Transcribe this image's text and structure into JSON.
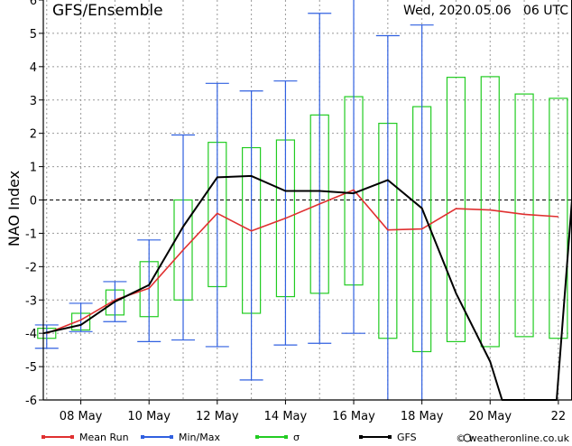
{
  "chart_data": {
    "type": "line",
    "title": "GFS/Ensemble",
    "run_label": "Wed, 2020.05.06   06 UTC",
    "ylabel": "NAO Index",
    "xlabel": "",
    "ylim": [
      -6,
      6
    ],
    "yticks": [
      -6,
      -5,
      -4,
      -3,
      -2,
      -1,
      0,
      1,
      2,
      3,
      4,
      5,
      6
    ],
    "grid": true,
    "x_range_days": [
      6.9,
      22.4
    ],
    "x_tick_labels": [
      {
        "day": 8,
        "label": "08 May"
      },
      {
        "day": 10,
        "label": "10 May"
      },
      {
        "day": 12,
        "label": "12 May"
      },
      {
        "day": 14,
        "label": "14 May"
      },
      {
        "day": 16,
        "label": "16 May"
      },
      {
        "day": 18,
        "label": "18 May"
      },
      {
        "day": 20,
        "label": "20 May"
      },
      {
        "day": 22,
        "label": "22"
      }
    ],
    "series": [
      {
        "name": "Mean Run",
        "color": "#e03030",
        "x": [
          7,
          8,
          9,
          10,
          11,
          12,
          13,
          14,
          15,
          16,
          17,
          18,
          19,
          20,
          21,
          22
        ],
        "y": [
          -4.0,
          -3.6,
          -3.0,
          -2.65,
          -1.5,
          -0.4,
          -0.93,
          -0.55,
          -0.12,
          0.3,
          -0.9,
          -0.87,
          -0.26,
          -0.3,
          -0.43,
          -0.5
        ]
      },
      {
        "name": "GFS",
        "color": "#000000",
        "x": [
          6.9,
          8,
          9,
          10,
          11,
          12,
          13,
          14,
          15,
          16,
          17,
          18,
          19,
          20,
          20.35,
          21.2,
          21.95,
          22.4
        ],
        "y": [
          -4.0,
          -3.75,
          -3.05,
          -2.55,
          -0.8,
          0.68,
          0.72,
          0.27,
          0.27,
          0.2,
          0.6,
          -0.25,
          -2.8,
          -4.85,
          -6.0,
          -6.0,
          -6.0,
          0.0
        ]
      },
      {
        "name": "Min/Max",
        "color": "#3060e0",
        "kind": "whiskers",
        "x": [
          7,
          8,
          9,
          10,
          11,
          12,
          13,
          14,
          15,
          16,
          17,
          18
        ],
        "low": [
          -4.45,
          -3.95,
          -3.65,
          -4.25,
          -4.2,
          -4.4,
          -5.4,
          -4.35,
          -4.3,
          -4.0,
          -6.0,
          -6.0
        ],
        "high": [
          -3.75,
          -3.1,
          -2.45,
          -1.2,
          1.95,
          3.5,
          3.27,
          3.57,
          5.6,
          6.0,
          4.93,
          5.25
        ]
      },
      {
        "name": "σ",
        "color": "#22cc22",
        "kind": "boxes",
        "x": [
          7,
          8,
          9,
          10,
          11,
          12,
          13,
          14,
          15,
          16,
          17,
          18,
          19,
          20,
          21,
          22
        ],
        "low": [
          -4.15,
          -3.9,
          -3.45,
          -3.5,
          -3.0,
          -2.6,
          -3.4,
          -2.9,
          -2.8,
          -2.55,
          -4.15,
          -4.55,
          -4.25,
          -4.4,
          -4.1,
          -4.15
        ],
        "high": [
          -3.85,
          -3.4,
          -2.7,
          -1.85,
          0.0,
          1.73,
          1.57,
          1.8,
          2.55,
          3.1,
          2.3,
          2.8,
          3.68,
          3.7,
          3.18,
          3.05
        ]
      }
    ],
    "legend_placement": "bottom",
    "legend": [
      {
        "label": "Mean Run",
        "color": "#e03030"
      },
      {
        "label": "Min/Max",
        "color": "#3060e0"
      },
      {
        "label": "σ",
        "color": "#22cc22"
      },
      {
        "label": "GFS",
        "color": "#000000"
      }
    ],
    "credit": "© weatheronline.co.uk"
  }
}
